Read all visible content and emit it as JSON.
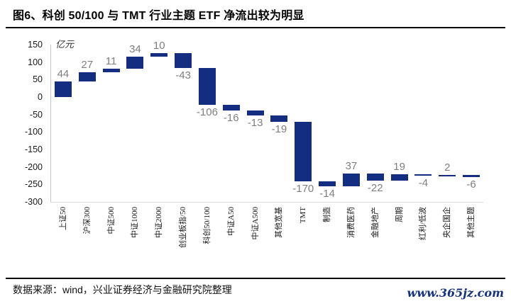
{
  "header": {
    "title": "图6、科创 50/100 与 TMT 行业主题 ETF 净流出较为明显"
  },
  "chart_data": {
    "type": "bar",
    "subtype": "waterfall",
    "title": "图6、科创 50/100 与 TMT 行业主题 ETF 净流出较为明显",
    "unit_label": "亿元",
    "categories": [
      "上证50",
      "沪深300",
      "中证500",
      "中证1000",
      "中证2000",
      "创业板指/50",
      "科创50/100",
      "中证A50",
      "中证A500",
      "其他宽基",
      "TMT",
      "制造",
      "消费医药",
      "金融地产",
      "周期",
      "红利/低波",
      "央企国企",
      "其他主题"
    ],
    "values": [
      44,
      27,
      11,
      34,
      10,
      -43,
      -106,
      -16,
      -13,
      -19,
      -170,
      -14,
      37,
      -22,
      19,
      -4,
      2,
      -6
    ],
    "cumulative_start": [
      0,
      44,
      71,
      82,
      116,
      126,
      83,
      -23,
      -39,
      -52,
      -71,
      -241,
      -255,
      -218,
      -240,
      -221,
      -225,
      -223
    ],
    "cumulative_end": [
      44,
      71,
      82,
      116,
      126,
      83,
      -23,
      -39,
      -52,
      -71,
      -241,
      -255,
      -218,
      -240,
      -221,
      -225,
      -223,
      -229
    ],
    "ylim": [
      -300,
      150
    ],
    "yticks": [
      150,
      100,
      50,
      0,
      -50,
      -100,
      -150,
      -200,
      -250,
      -300
    ],
    "grid": false,
    "legend_position": "none",
    "colors": {
      "bar": "#132e80",
      "value_label": "#7f7f7f",
      "axis_line": "#c6c6c6",
      "bottom_axis_line": "#d9d9d9"
    }
  },
  "footer": {
    "source": "数据来源：wind，兴业证券经济与金融研究院整理",
    "watermark": "www.365jz.com"
  }
}
